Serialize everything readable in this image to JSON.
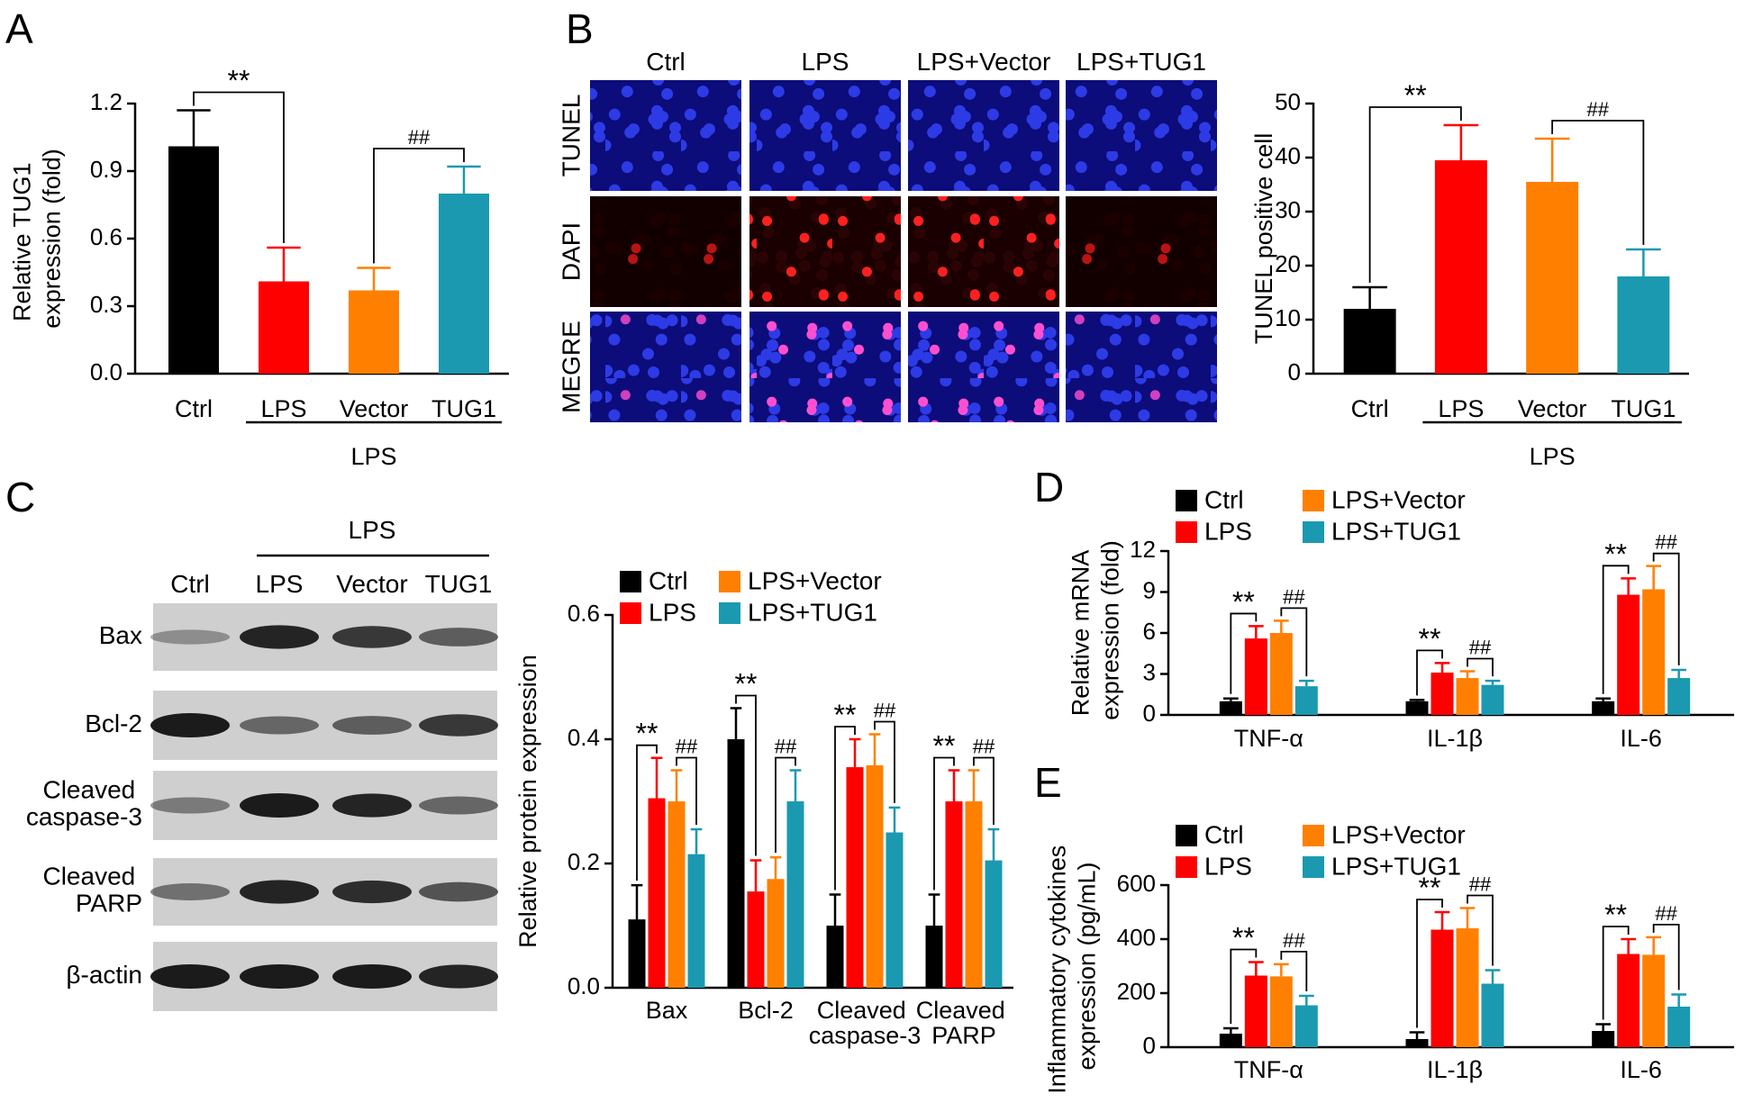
{
  "panel_labels": [
    "A",
    "B",
    "C",
    "D",
    "E"
  ],
  "microscopy": {
    "columns": [
      "Ctrl",
      "LPS",
      "LPS+Vector",
      "LPS+TUG1"
    ],
    "rows": [
      "TUNEL",
      "DAPI",
      "MEGRE"
    ]
  },
  "western_blot": {
    "group_label": "LPS",
    "lanes": [
      "Ctrl",
      "LPS",
      "Vector",
      "TUG1"
    ],
    "rows": [
      "Bax",
      "Bcl-2",
      "Cleaved\ncaspase-3",
      "Cleaved\nPARP",
      "β-actin"
    ]
  },
  "chart_data": [
    {
      "type": "bar",
      "ylabel": "Relative TUG1\nexpression (fold)",
      "categories": [
        "Ctrl",
        "LPS",
        "Vector",
        "TUG1"
      ],
      "values": [
        1.01,
        0.41,
        0.37,
        0.8
      ],
      "errors": [
        0.16,
        0.15,
        0.1,
        0.12
      ],
      "colors": [
        "#000000",
        "#ff0000",
        "#ff8000",
        "#1b99b0"
      ],
      "ylim": [
        0,
        1.2
      ],
      "yticks": [
        {
          "value": 0,
          "label": "0.0"
        },
        0.3,
        0.6,
        0.9,
        1.2
      ],
      "group_label": {
        "text": "LPS",
        "categories": [
          "LPS",
          "Vector",
          "TUG1"
        ]
      },
      "annotations": [
        {
          "text": "**",
          "between": [
            "Ctrl",
            "LPS"
          ]
        },
        {
          "text": "##",
          "between": [
            "Vector",
            "TUG1"
          ]
        }
      ]
    },
    {
      "type": "bar",
      "ylabel": "TUNEL positive cell",
      "categories": [
        "Ctrl",
        "LPS",
        "Vector",
        "TUG1"
      ],
      "values": [
        12,
        39.5,
        35.5,
        18
      ],
      "errors": [
        4,
        6.5,
        8,
        5
      ],
      "colors": [
        "#000000",
        "#ff0000",
        "#ff8000",
        "#1b99b0"
      ],
      "ylim": [
        0,
        50
      ],
      "yticks": [
        0,
        10,
        20,
        30,
        40,
        50
      ],
      "group_label": {
        "text": "LPS",
        "categories": [
          "LPS",
          "Vector",
          "TUG1"
        ]
      },
      "annotations": [
        {
          "text": "**",
          "between": [
            "Ctrl",
            "LPS"
          ]
        },
        {
          "text": "##",
          "between": [
            "Vector",
            "TUG1"
          ]
        }
      ]
    },
    {
      "type": "grouped-bar",
      "ylabel": "Relative protein expression",
      "categories": [
        "Bax",
        "Bcl-2",
        "Cleaved\ncaspase-3",
        "Cleaved\nPARP"
      ],
      "series": [
        {
          "name": "Ctrl",
          "color": "#000000",
          "values": [
            0.11,
            0.4,
            0.1,
            0.1
          ],
          "errors": [
            0.055,
            0.05,
            0.05,
            0.05
          ]
        },
        {
          "name": "LPS",
          "color": "#ff0000",
          "values": [
            0.305,
            0.155,
            0.355,
            0.3
          ],
          "errors": [
            0.065,
            0.05,
            0.045,
            0.05
          ]
        },
        {
          "name": "LPS+Vector",
          "color": "#ff8000",
          "values": [
            0.3,
            0.175,
            0.358,
            0.3
          ],
          "errors": [
            0.05,
            0.035,
            0.05,
            0.05
          ]
        },
        {
          "name": "LPS+TUG1",
          "color": "#1b99b0",
          "values": [
            0.215,
            0.3,
            0.25,
            0.205
          ],
          "errors": [
            0.04,
            0.05,
            0.04,
            0.05
          ]
        }
      ],
      "ylim": [
        0,
        0.6
      ],
      "yticks": [
        {
          "value": 0,
          "label": "0.0"
        },
        0.2,
        0.4,
        0.6
      ],
      "annotations": [
        {
          "category": "Bax",
          "text": "**",
          "between": [
            "Ctrl",
            "LPS"
          ]
        },
        {
          "category": "Bax",
          "text": "##",
          "between": [
            "LPS+Vector",
            "LPS+TUG1"
          ]
        },
        {
          "category": "Bcl-2",
          "text": "**",
          "between": [
            "Ctrl",
            "LPS"
          ]
        },
        {
          "category": "Bcl-2",
          "text": "##",
          "between": [
            "LPS+Vector",
            "LPS+TUG1"
          ]
        },
        {
          "category": "Cleaved\ncaspase-3",
          "text": "**",
          "between": [
            "Ctrl",
            "LPS"
          ]
        },
        {
          "category": "Cleaved\ncaspase-3",
          "text": "##",
          "between": [
            "LPS+Vector",
            "LPS+TUG1"
          ]
        },
        {
          "category": "Cleaved\nPARP",
          "text": "**",
          "between": [
            "Ctrl",
            "LPS"
          ]
        },
        {
          "category": "Cleaved\nPARP",
          "text": "##",
          "between": [
            "LPS+Vector",
            "LPS+TUG1"
          ]
        }
      ]
    },
    {
      "type": "grouped-bar",
      "ylabel": "Relative mRNA\nexpression (fold)",
      "categories": [
        "TNF-α",
        "IL-1β",
        "IL-6"
      ],
      "series": [
        {
          "name": "Ctrl",
          "color": "#000000",
          "values": [
            1,
            1,
            1
          ],
          "errors": [
            0.2,
            0.1,
            0.2
          ]
        },
        {
          "name": "LPS",
          "color": "#ff0000",
          "values": [
            5.6,
            3.1,
            8.8
          ],
          "errors": [
            0.9,
            0.7,
            1.2
          ]
        },
        {
          "name": "LPS+Vector",
          "color": "#ff8000",
          "values": [
            6.0,
            2.7,
            9.2
          ],
          "errors": [
            0.9,
            0.5,
            1.7
          ]
        },
        {
          "name": "LPS+TUG1",
          "color": "#1b99b0",
          "values": [
            2.1,
            2.2,
            2.7
          ],
          "errors": [
            0.4,
            0.3,
            0.6
          ]
        }
      ],
      "ylim": [
        0,
        12
      ],
      "yticks": [
        0,
        3,
        6,
        9,
        12
      ],
      "annotations": [
        {
          "category": "TNF-α",
          "text": "**",
          "between": [
            "Ctrl",
            "LPS"
          ]
        },
        {
          "category": "TNF-α",
          "text": "##",
          "between": [
            "LPS+Vector",
            "LPS+TUG1"
          ]
        },
        {
          "category": "IL-1β",
          "text": "**",
          "between": [
            "Ctrl",
            "LPS"
          ]
        },
        {
          "category": "IL-1β",
          "text": "##",
          "between": [
            "LPS+Vector",
            "LPS+TUG1"
          ]
        },
        {
          "category": "IL-6",
          "text": "**",
          "between": [
            "Ctrl",
            "LPS"
          ]
        },
        {
          "category": "IL-6",
          "text": "##",
          "between": [
            "LPS+Vector",
            "LPS+TUG1"
          ]
        }
      ]
    },
    {
      "type": "grouped-bar",
      "ylabel": "Inflammatory cytokines\nexpression (pg/mL)",
      "categories": [
        "TNF-α",
        "IL-1β",
        "IL-6"
      ],
      "series": [
        {
          "name": "Ctrl",
          "color": "#000000",
          "values": [
            50,
            30,
            60
          ],
          "errors": [
            20,
            25,
            25
          ]
        },
        {
          "name": "LPS",
          "color": "#ff0000",
          "values": [
            265,
            435,
            345
          ],
          "errors": [
            50,
            65,
            55
          ]
        },
        {
          "name": "LPS+Vector",
          "color": "#ff8000",
          "values": [
            262,
            440,
            342
          ],
          "errors": [
            45,
            75,
            65
          ]
        },
        {
          "name": "LPS+TUG1",
          "color": "#1b99b0",
          "values": [
            155,
            235,
            150
          ],
          "errors": [
            35,
            50,
            45
          ]
        }
      ],
      "ylim": [
        0,
        600
      ],
      "yticks": [
        0,
        200,
        400,
        600
      ],
      "annotations": [
        {
          "category": "TNF-α",
          "text": "**",
          "between": [
            "Ctrl",
            "LPS"
          ]
        },
        {
          "category": "TNF-α",
          "text": "##",
          "between": [
            "LPS+Vector",
            "LPS+TUG1"
          ]
        },
        {
          "category": "IL-1β",
          "text": "**",
          "between": [
            "Ctrl",
            "LPS"
          ]
        },
        {
          "category": "IL-1β",
          "text": "##",
          "between": [
            "LPS+Vector",
            "LPS+TUG1"
          ]
        },
        {
          "category": "IL-6",
          "text": "**",
          "between": [
            "Ctrl",
            "LPS"
          ]
        },
        {
          "category": "IL-6",
          "text": "##",
          "between": [
            "LPS+Vector",
            "LPS+TUG1"
          ]
        }
      ]
    }
  ]
}
